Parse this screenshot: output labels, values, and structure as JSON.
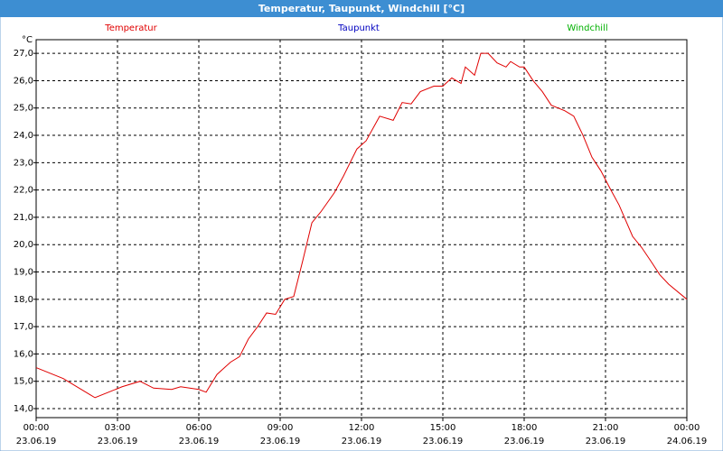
{
  "chart_data": {
    "type": "line",
    "title": "Temperatur, Taupunkt, Windchill [°C]",
    "y_unit": "°C",
    "x": [
      0,
      1,
      2,
      2.17,
      3.17,
      3.83,
      4.33,
      5,
      5.33,
      6,
      6.27,
      6.67,
      7.17,
      7.5,
      7.83,
      8.17,
      8.5,
      8.83,
      9.17,
      9.5,
      9.83,
      10.17,
      10.5,
      11,
      11.33,
      11.83,
      12.17,
      12.67,
      13.17,
      13.5,
      13.83,
      14.17,
      14.67,
      15,
      15.33,
      15.67,
      15.83,
      16.17,
      16.4,
      16.67,
      17,
      17.33,
      17.5,
      17.83,
      18,
      18.33,
      18.67,
      19,
      19.5,
      19.83,
      20.17,
      20.5,
      20.83,
      21.17,
      21.5,
      22,
      22.33,
      22.67,
      23,
      23.33,
      24
    ],
    "series": [
      {
        "name": "Temperatur",
        "color": "#e00000",
        "values": [
          15.5,
          15.1,
          14.5,
          14.4,
          14.8,
          15.0,
          14.75,
          14.7,
          14.8,
          14.7,
          14.6,
          15.25,
          15.7,
          15.9,
          16.55,
          17.0,
          17.5,
          17.45,
          18.0,
          18.1,
          19.4,
          20.8,
          21.2,
          21.9,
          22.5,
          23.5,
          23.8,
          24.7,
          24.55,
          25.2,
          25.15,
          25.6,
          25.8,
          25.8,
          26.1,
          25.9,
          26.5,
          26.2,
          27.0,
          27.0,
          26.65,
          26.5,
          26.7,
          26.5,
          26.5,
          26.0,
          25.6,
          25.1,
          24.9,
          24.7,
          24.0,
          23.2,
          22.7,
          22.05,
          21.45,
          20.3,
          19.9,
          19.4,
          18.9,
          18.55,
          18.0
        ]
      },
      {
        "name": "Taupunkt",
        "color": "#0000c0"
      },
      {
        "name": "Windchill",
        "color": "#00b000"
      }
    ],
    "xlim": [
      0,
      24
    ],
    "xticks": [
      {
        "value": 0,
        "label": "00:00"
      },
      {
        "value": 3,
        "label": "03:00"
      },
      {
        "value": 6,
        "label": "06:00"
      },
      {
        "value": 9,
        "label": "09:00"
      },
      {
        "value": 12,
        "label": "12:00"
      },
      {
        "value": 15,
        "label": "15:00"
      },
      {
        "value": 18,
        "label": "18:00"
      },
      {
        "value": 21,
        "label": "21:00"
      },
      {
        "value": 24,
        "label": "00:00"
      }
    ],
    "xtick_dates": [
      "23.06.19",
      "23.06.19",
      "23.06.19",
      "23.06.19",
      "23.06.19",
      "23.06.19",
      "23.06.19",
      "23.06.19",
      "24.06.19"
    ],
    "ylim": [
      13.67,
      27.5
    ],
    "yticks": [
      {
        "value": 14,
        "label": "14,0"
      },
      {
        "value": 15,
        "label": "15,0"
      },
      {
        "value": 16,
        "label": "16,0"
      },
      {
        "value": 17,
        "label": "17,0"
      },
      {
        "value": 18,
        "label": "18,0"
      },
      {
        "value": 19,
        "label": "19,0"
      },
      {
        "value": 20,
        "label": "20,0"
      },
      {
        "value": 21,
        "label": "21,0"
      },
      {
        "value": 22,
        "label": "22,0"
      },
      {
        "value": 23,
        "label": "23,0"
      },
      {
        "value": 24,
        "label": "24,0"
      },
      {
        "value": 25,
        "label": "25,0"
      },
      {
        "value": 26,
        "label": "26,0"
      },
      {
        "value": 27,
        "label": "27,0"
      }
    ],
    "grid": true
  }
}
